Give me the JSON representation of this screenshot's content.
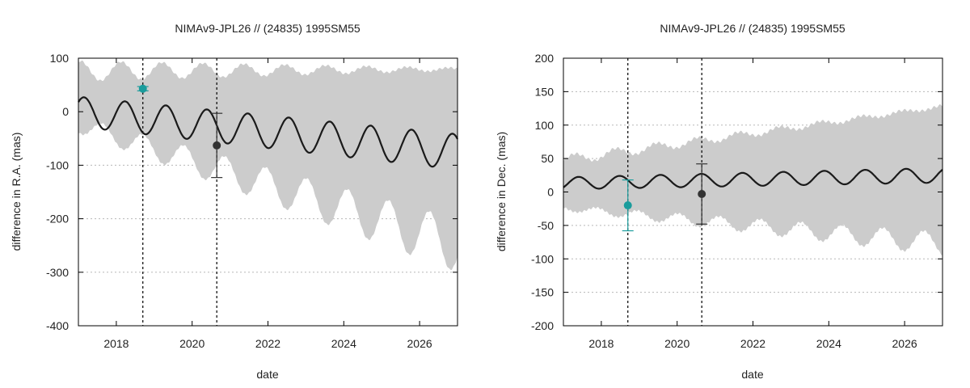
{
  "colors": {
    "band": "#cccccc",
    "curve": "#1a1a1a",
    "obs_teal": "#1a9c9c",
    "obs_dark": "#333333",
    "frame": "#000000"
  },
  "chart_data": [
    {
      "type": "line",
      "title": "NIMAv9-JPL26 // (24835) 1995SM55",
      "xlabel": "date",
      "ylabel": "difference in R.A. (mas)",
      "xlim": [
        2017.0,
        2027.0
      ],
      "ylim": [
        -400,
        100
      ],
      "xticks": [
        2018,
        2020,
        2022,
        2024,
        2026
      ],
      "yticks": [
        -400,
        -300,
        -200,
        -100,
        0,
        100
      ],
      "xtick_labels": [
        "2018",
        "2020",
        "2022",
        "2024",
        "2026"
      ],
      "ytick_labels": [
        "-400",
        "-300",
        "-200",
        "-100",
        "0",
        "100"
      ],
      "vertical_lines": [
        2018.7,
        2020.65
      ],
      "model": {
        "description": "oscillating difference curve with uncertainty band",
        "period_years": 1.08,
        "phase_year": 2017.15,
        "center_start": 0,
        "center_end": -75,
        "amplitude_start": 28,
        "amplitude_end": 33,
        "band_upper_start": 95,
        "band_upper_end": 82,
        "band_upper_wiggle": 38,
        "band_upper_wiggle_end": 5,
        "band_lower_start": -40,
        "band_lower_end": -300,
        "band_lower_wiggle_start": 30,
        "band_lower_wiggle_end": 100
      },
      "observations": [
        {
          "x": 2018.7,
          "y": 43,
          "err": 4,
          "color": "#1a9c9c"
        },
        {
          "x": 2020.65,
          "y": -63,
          "err": 60,
          "color": "#333333"
        }
      ]
    },
    {
      "type": "line",
      "title": "NIMAv9-JPL26 // (24835) 1995SM55",
      "xlabel": "date",
      "ylabel": "difference in Dec. (mas)",
      "xlim": [
        2017.0,
        2027.0
      ],
      "ylim": [
        -200,
        200
      ],
      "xticks": [
        2018,
        2020,
        2022,
        2024,
        2026
      ],
      "yticks": [
        -200,
        -150,
        -100,
        -50,
        0,
        50,
        100,
        150,
        200
      ],
      "xtick_labels": [
        "2018",
        "2020",
        "2022",
        "2024",
        "2026"
      ],
      "ytick_labels": [
        "-200",
        "-150",
        "-100",
        "-50",
        "0",
        "50",
        "100",
        "150",
        "200"
      ],
      "vertical_lines": [
        2018.7,
        2020.65
      ],
      "model": {
        "description": "oscillating difference curve with uncertainty band",
        "period_years": 1.08,
        "phase_year": 2017.4,
        "center_start": 13,
        "center_end": 25,
        "amplitude_start": 9,
        "amplitude_end": 11,
        "band_upper_start": 55,
        "band_upper_end": 130,
        "band_upper_wiggle": 15,
        "band_upper_wiggle_end": 4,
        "band_lower_start": -28,
        "band_lower_end": -95,
        "band_lower_wiggle_start": 8,
        "band_lower_wiggle_end": 35
      },
      "observations": [
        {
          "x": 2018.7,
          "y": -20,
          "err": 38,
          "color": "#1a9c9c"
        },
        {
          "x": 2020.65,
          "y": -3,
          "err": 45,
          "color": "#333333"
        }
      ]
    }
  ]
}
